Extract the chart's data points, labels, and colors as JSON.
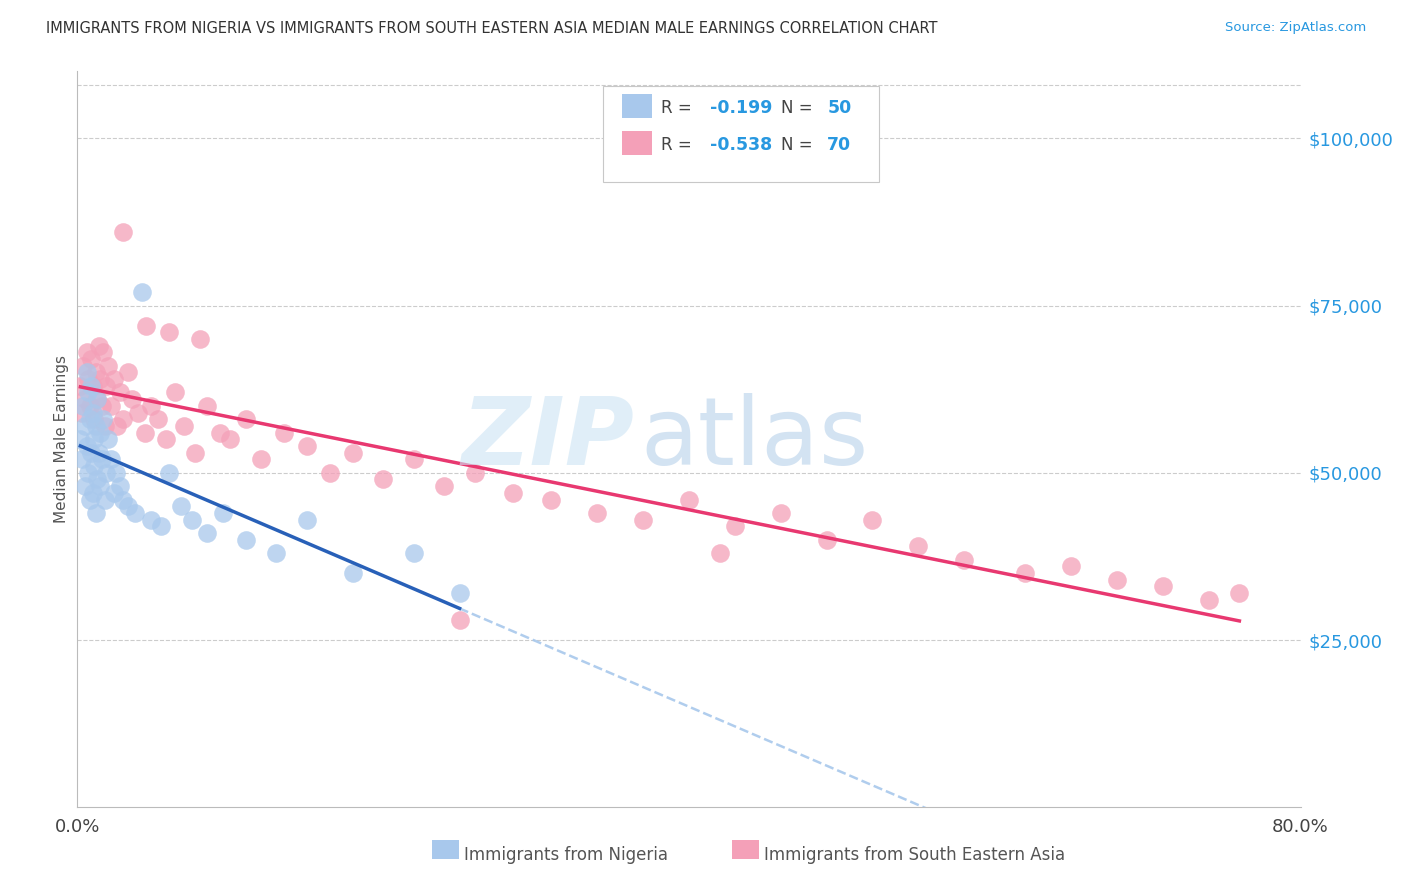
{
  "title": "IMMIGRANTS FROM NIGERIA VS IMMIGRANTS FROM SOUTH EASTERN ASIA MEDIAN MALE EARNINGS CORRELATION CHART",
  "source": "Source: ZipAtlas.com",
  "ylabel": "Median Male Earnings",
  "xlim": [
    0.0,
    0.8
  ],
  "ylim": [
    0,
    110000
  ],
  "yticks": [
    0,
    25000,
    50000,
    75000,
    100000
  ],
  "ytick_labels": [
    "",
    "$25,000",
    "$50,000",
    "$75,000",
    "$100,000"
  ],
  "xtick_labels": [
    "0.0%",
    "80.0%"
  ],
  "nigeria_color": "#a8c8ec",
  "sea_color": "#f4a0b8",
  "nigeria_line_color": "#2860b8",
  "sea_line_color": "#e83870",
  "dashed_line_color": "#a8c8ec",
  "right_tick_color": "#2898e0",
  "nigeria_x": [
    0.002,
    0.003,
    0.004,
    0.005,
    0.005,
    0.006,
    0.006,
    0.007,
    0.007,
    0.008,
    0.008,
    0.009,
    0.009,
    0.01,
    0.01,
    0.011,
    0.011,
    0.012,
    0.012,
    0.013,
    0.013,
    0.014,
    0.015,
    0.015,
    0.016,
    0.017,
    0.018,
    0.019,
    0.02,
    0.022,
    0.024,
    0.025,
    0.028,
    0.03,
    0.033,
    0.038,
    0.042,
    0.048,
    0.055,
    0.06,
    0.068,
    0.075,
    0.085,
    0.095,
    0.11,
    0.13,
    0.15,
    0.18,
    0.22,
    0.25
  ],
  "nigeria_y": [
    55000,
    52000,
    60000,
    57000,
    48000,
    65000,
    54000,
    62000,
    50000,
    58000,
    46000,
    63000,
    53000,
    59000,
    47000,
    55000,
    51000,
    57000,
    44000,
    61000,
    49000,
    53000,
    48000,
    56000,
    52000,
    58000,
    46000,
    50000,
    55000,
    52000,
    47000,
    50000,
    48000,
    46000,
    45000,
    44000,
    77000,
    43000,
    42000,
    50000,
    45000,
    43000,
    41000,
    44000,
    40000,
    38000,
    43000,
    35000,
    38000,
    32000
  ],
  "sea_x": [
    0.002,
    0.003,
    0.004,
    0.005,
    0.006,
    0.007,
    0.008,
    0.009,
    0.01,
    0.011,
    0.012,
    0.013,
    0.014,
    0.015,
    0.016,
    0.017,
    0.018,
    0.019,
    0.02,
    0.022,
    0.024,
    0.026,
    0.028,
    0.03,
    0.033,
    0.036,
    0.04,
    0.044,
    0.048,
    0.053,
    0.058,
    0.064,
    0.07,
    0.077,
    0.085,
    0.093,
    0.1,
    0.11,
    0.12,
    0.135,
    0.15,
    0.165,
    0.18,
    0.2,
    0.22,
    0.24,
    0.26,
    0.285,
    0.31,
    0.34,
    0.37,
    0.4,
    0.43,
    0.46,
    0.49,
    0.52,
    0.55,
    0.58,
    0.62,
    0.65,
    0.68,
    0.71,
    0.74,
    0.76,
    0.03,
    0.045,
    0.06,
    0.08,
    0.25,
    0.42
  ],
  "sea_y": [
    63000,
    59000,
    66000,
    61000,
    68000,
    64000,
    60000,
    67000,
    63000,
    58000,
    65000,
    61000,
    69000,
    64000,
    60000,
    68000,
    57000,
    63000,
    66000,
    60000,
    64000,
    57000,
    62000,
    58000,
    65000,
    61000,
    59000,
    56000,
    60000,
    58000,
    55000,
    62000,
    57000,
    53000,
    60000,
    56000,
    55000,
    58000,
    52000,
    56000,
    54000,
    50000,
    53000,
    49000,
    52000,
    48000,
    50000,
    47000,
    46000,
    44000,
    43000,
    46000,
    42000,
    44000,
    40000,
    43000,
    39000,
    37000,
    35000,
    36000,
    34000,
    33000,
    31000,
    32000,
    86000,
    72000,
    71000,
    70000,
    28000,
    38000
  ]
}
